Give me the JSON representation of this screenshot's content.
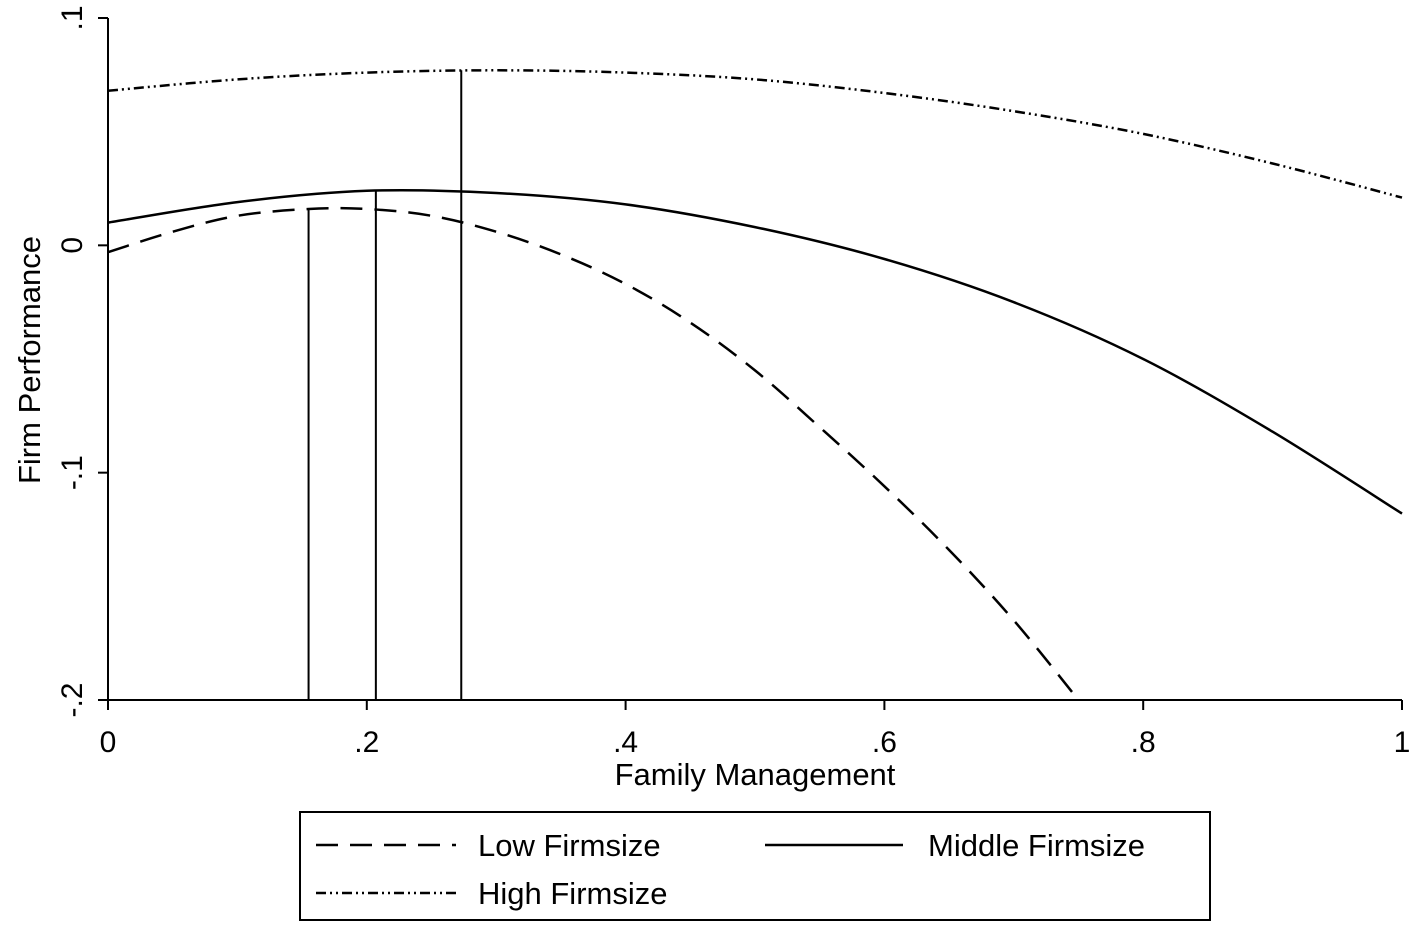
{
  "chart_data": {
    "type": "line",
    "title": "",
    "xlabel": "Family Management",
    "ylabel": "Firm Performance",
    "xlim": [
      0,
      1
    ],
    "ylim": [
      -0.2,
      0.1
    ],
    "x_ticks": [
      0,
      0.2,
      0.4,
      0.6,
      0.8,
      1
    ],
    "x_tick_labels": [
      "0",
      ".2",
      ".4",
      ".6",
      ".8",
      "1"
    ],
    "y_ticks": [
      -0.2,
      -0.1,
      0,
      0.1
    ],
    "y_tick_labels": [
      "-.2",
      "-.1",
      "0",
      ".1"
    ],
    "grid": false,
    "legend_position": "bottom",
    "series": [
      {
        "name": "Low Firmsize",
        "style": "dashed",
        "color": "#000000",
        "x": [
          0,
          0.05,
          0.1,
          0.155,
          0.2,
          0.25,
          0.3,
          0.35,
          0.4,
          0.45,
          0.5,
          0.55,
          0.6,
          0.65,
          0.7,
          0.75
        ],
        "y": [
          -0.003,
          0.006,
          0.013,
          0.016,
          0.016,
          0.013,
          0.006,
          -0.004,
          -0.017,
          -0.034,
          -0.055,
          -0.08,
          -0.106,
          -0.134,
          -0.165,
          -0.2
        ]
      },
      {
        "name": "Middle Firmsize",
        "style": "solid",
        "color": "#000000",
        "x": [
          0,
          0.1,
          0.2,
          0.3,
          0.4,
          0.5,
          0.6,
          0.7,
          0.8,
          0.9,
          1
        ],
        "y": [
          0.01,
          0.019,
          0.024,
          0.023,
          0.018,
          0.008,
          -0.006,
          -0.025,
          -0.05,
          -0.082,
          -0.118
        ]
      },
      {
        "name": "High Firmsize",
        "style": "dash-dot-dot",
        "color": "#000000",
        "x": [
          0,
          0.1,
          0.2,
          0.3,
          0.4,
          0.5,
          0.6,
          0.7,
          0.8,
          0.9,
          1
        ],
        "y": [
          0.068,
          0.073,
          0.076,
          0.077,
          0.076,
          0.073,
          0.067,
          0.059,
          0.049,
          0.036,
          0.021
        ]
      }
    ],
    "reference_lines": [
      {
        "x": 0.155,
        "y_top": 0.016
      },
      {
        "x": 0.207,
        "y_top": 0.024
      },
      {
        "x": 0.273,
        "y_top": 0.077
      }
    ]
  }
}
